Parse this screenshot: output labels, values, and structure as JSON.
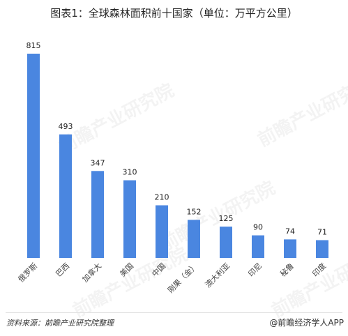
{
  "title": "图表1：全球森林面积前十国家（单位：万平方公里）",
  "watermark": "前瞻产业研究院",
  "footer": {
    "source": "资料来源：前瞻产业研究院整理",
    "brand": "@前瞻经济学人APP"
  },
  "colors": {
    "bar": "#4a86e0"
  },
  "chart_data": {
    "type": "bar",
    "title": "图表1：全球森林面积前十国家（单位：万平方公里）",
    "xlabel": "",
    "ylabel": "",
    "categories": [
      "俄罗斯",
      "巴西",
      "加拿大",
      "美国",
      "中国",
      "刚果（金）",
      "澳大利亚",
      "印尼",
      "秘鲁",
      "印度"
    ],
    "values": [
      815,
      493,
      347,
      310,
      210,
      152,
      125,
      90,
      74,
      71
    ],
    "ylim": [
      0,
      815
    ],
    "grid": false,
    "legend": "none",
    "data_labels": true
  }
}
